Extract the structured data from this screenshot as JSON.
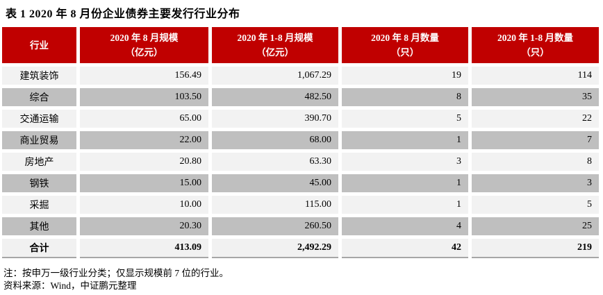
{
  "title": "表 1  2020 年 8 月份企业债券主要发行行业分布",
  "colors": {
    "header_bg": "#C00000",
    "header_text": "#FFFFFF",
    "row_light": "#F2F2F2",
    "row_dark": "#BFBFBF"
  },
  "table": {
    "columns": [
      {
        "label": "行业",
        "unit": ""
      },
      {
        "label": "2020 年 8 月规模",
        "unit": "（亿元）"
      },
      {
        "label": "2020 年 1-8 月规模",
        "unit": "（亿元）"
      },
      {
        "label": "2020 年 8 月数量",
        "unit": "（只）"
      },
      {
        "label": "2020 年 1-8 月数量",
        "unit": "（只）"
      }
    ],
    "rows": [
      {
        "industry": "建筑装饰",
        "aug_scale": "156.49",
        "ytd_scale": "1,067.29",
        "aug_count": "19",
        "ytd_count": "114"
      },
      {
        "industry": "综合",
        "aug_scale": "103.50",
        "ytd_scale": "482.50",
        "aug_count": "8",
        "ytd_count": "35"
      },
      {
        "industry": "交通运输",
        "aug_scale": "65.00",
        "ytd_scale": "390.70",
        "aug_count": "5",
        "ytd_count": "22"
      },
      {
        "industry": "商业贸易",
        "aug_scale": "22.00",
        "ytd_scale": "68.00",
        "aug_count": "1",
        "ytd_count": "7"
      },
      {
        "industry": "房地产",
        "aug_scale": "20.80",
        "ytd_scale": "63.30",
        "aug_count": "3",
        "ytd_count": "8"
      },
      {
        "industry": "钢铁",
        "aug_scale": "15.00",
        "ytd_scale": "45.00",
        "aug_count": "1",
        "ytd_count": "3"
      },
      {
        "industry": "采掘",
        "aug_scale": "10.00",
        "ytd_scale": "115.00",
        "aug_count": "1",
        "ytd_count": "5"
      },
      {
        "industry": "其他",
        "aug_scale": "20.30",
        "ytd_scale": "260.50",
        "aug_count": "4",
        "ytd_count": "25"
      }
    ],
    "total": {
      "industry": "合计",
      "aug_scale": "413.09",
      "ytd_scale": "2,492.29",
      "aug_count": "42",
      "ytd_count": "219"
    }
  },
  "notes": {
    "note1": "注：按申万一级行业分类；仅显示规模前 7 位的行业。",
    "note2": "资料来源：Wind，中证鹏元整理"
  }
}
